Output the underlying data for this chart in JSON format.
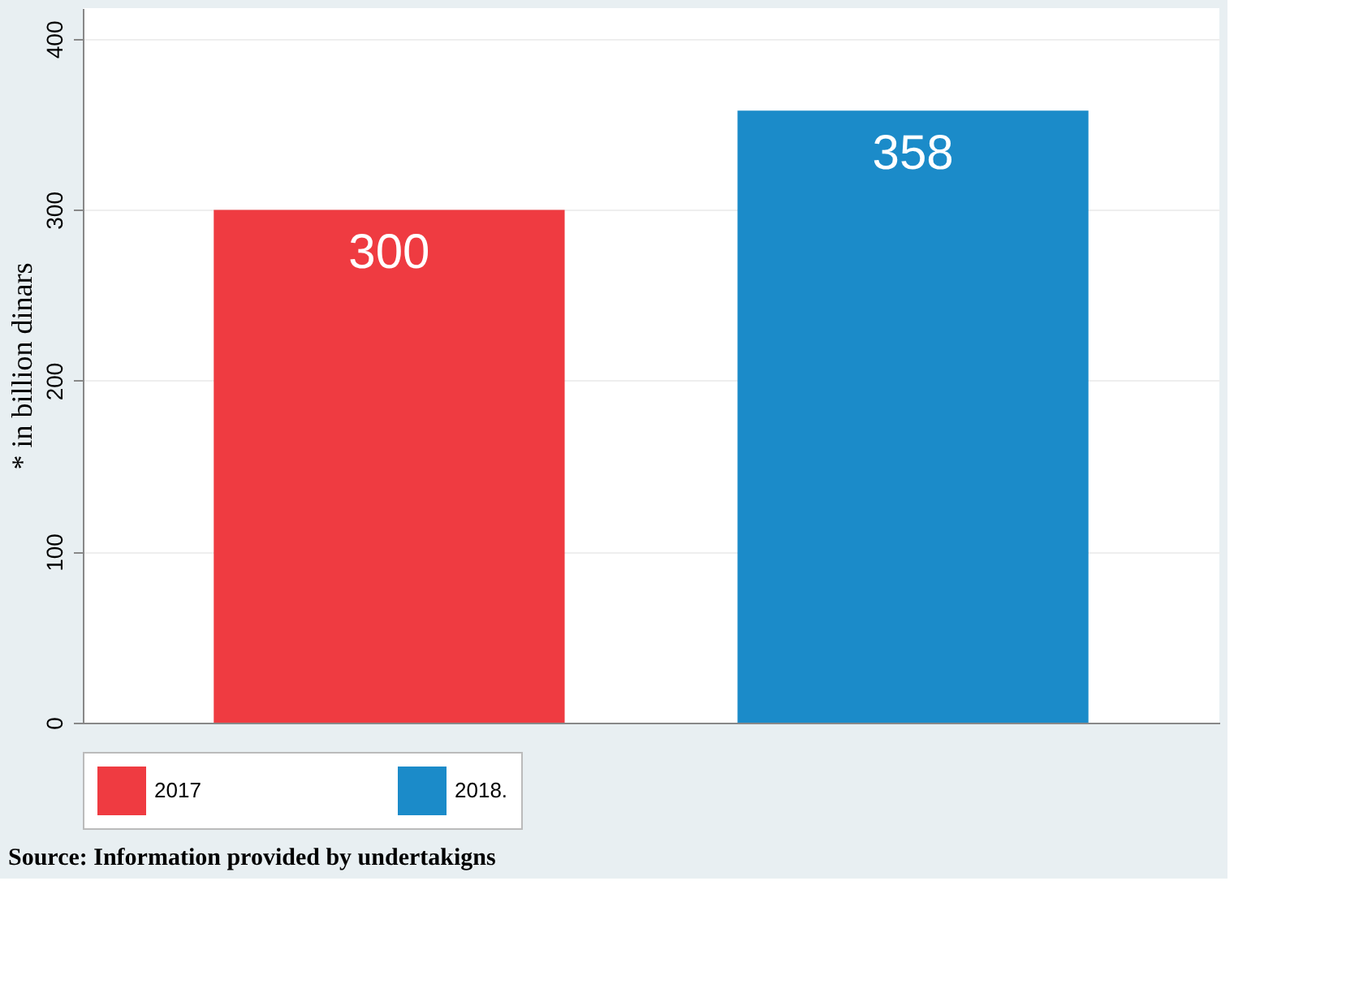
{
  "chart_data": {
    "type": "bar",
    "categories": [
      null,
      null
    ],
    "series": [
      {
        "name": "2017",
        "color": "#ef3b41",
        "values": [
          300,
          null
        ]
      },
      {
        "name": "2018.",
        "color": "#1b8bc9",
        "values": [
          null,
          358
        ]
      }
    ],
    "ylabel": "* in billion dinars",
    "ylim": [
      0,
      418
    ],
    "yticks": [
      0,
      100,
      200,
      300,
      400
    ],
    "grid": "y",
    "legend": "bottom",
    "data_labels": true,
    "tick_labels": "y",
    "annotations": [
      "Source: Information provided by undertakigns"
    ]
  }
}
